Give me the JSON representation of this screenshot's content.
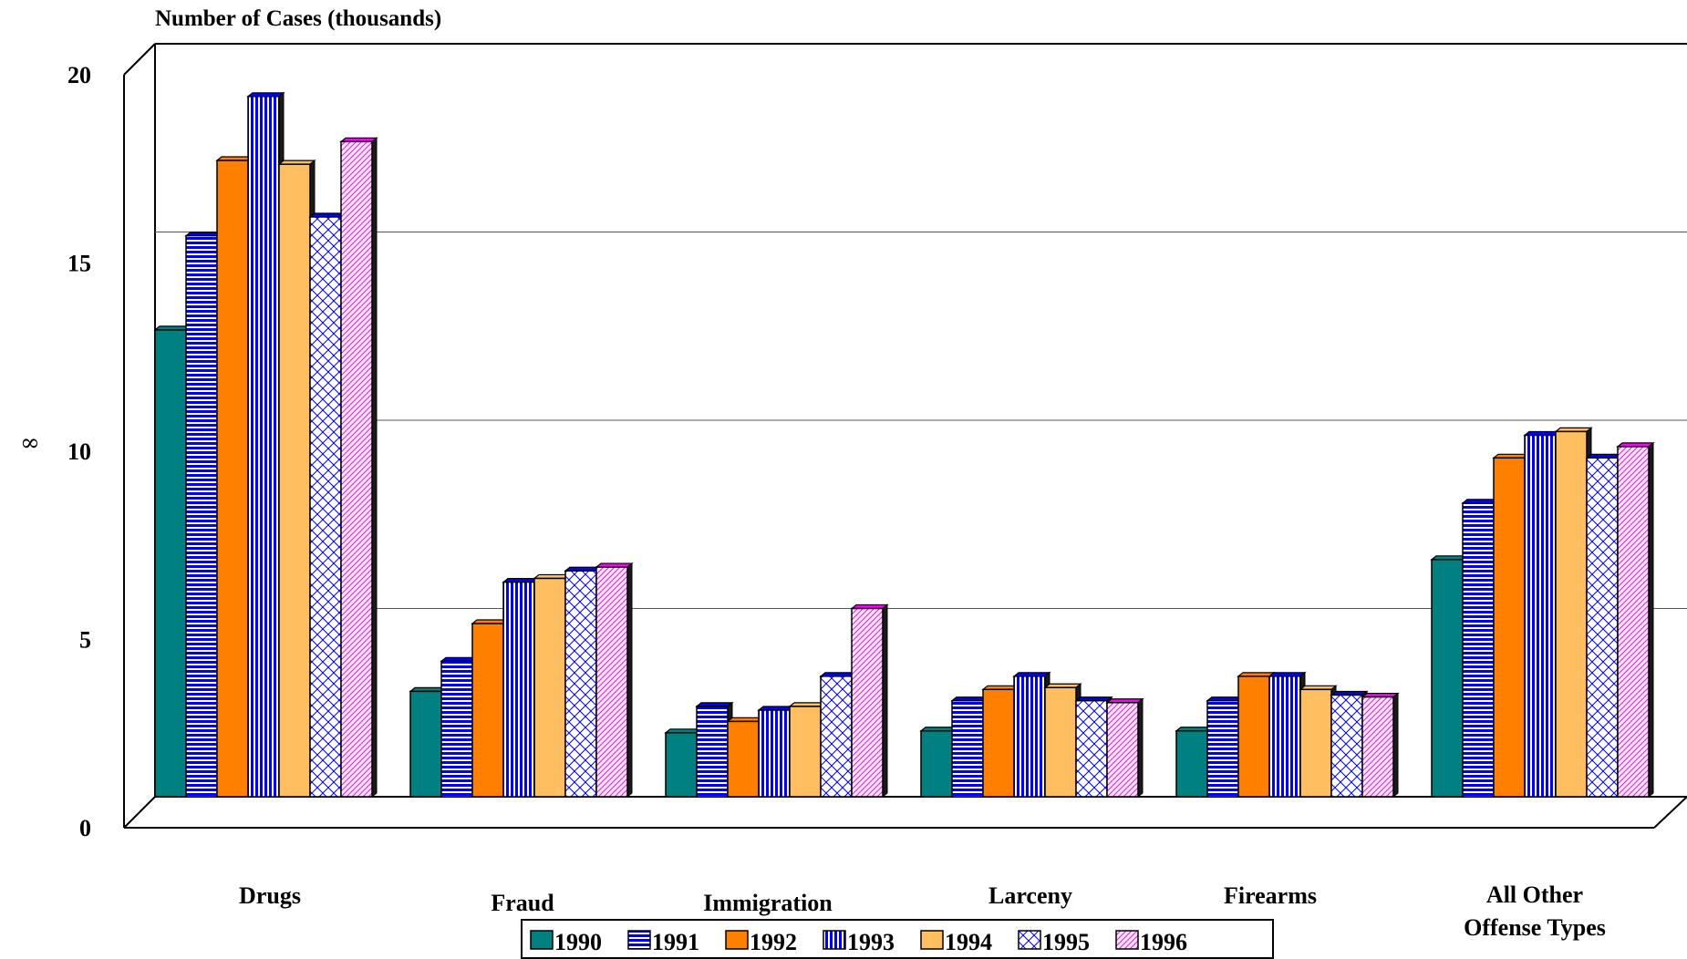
{
  "chart_data": {
    "type": "bar",
    "title": "Number of Cases (thousands)",
    "side_glyph": "∞",
    "categories": [
      [
        "Drugs"
      ],
      [
        "Fraud"
      ],
      [
        "Immigration"
      ],
      [
        "Larceny"
      ],
      [
        "Firearms"
      ],
      [
        "All Other",
        "Offense Types"
      ]
    ],
    "ylim": [
      0,
      20
    ],
    "yticks": [
      "0",
      "5",
      "10",
      "15",
      "20"
    ],
    "grid": true,
    "legend_position": "bottom-center",
    "series": [
      {
        "name": "1990",
        "color": "#008080",
        "pattern": "solid",
        "values": [
          12.4,
          2.8,
          1.7,
          1.75,
          1.75,
          6.3
        ]
      },
      {
        "name": "1991",
        "color": "#0000ff",
        "pattern": "horizontal-lines",
        "values": [
          14.9,
          3.6,
          2.4,
          2.55,
          2.55,
          7.8
        ]
      },
      {
        "name": "1992",
        "color": "#ff8000",
        "pattern": "solid",
        "values": [
          16.9,
          4.6,
          2.0,
          2.85,
          3.2,
          9.0
        ]
      },
      {
        "name": "1993",
        "color": "#0000ff",
        "pattern": "vertical-lines",
        "values": [
          18.6,
          5.7,
          2.3,
          3.2,
          3.2,
          9.6
        ]
      },
      {
        "name": "1994",
        "color": "#ffbf60",
        "pattern": "solid",
        "values": [
          16.8,
          5.8,
          2.4,
          2.9,
          2.85,
          9.7
        ]
      },
      {
        "name": "1995",
        "color": "#0000ff",
        "pattern": "crosshatch",
        "values": [
          15.4,
          6.0,
          3.2,
          2.55,
          2.7,
          9.0
        ]
      },
      {
        "name": "1996",
        "color": "#ff00ff",
        "pattern": "diagonal",
        "values": [
          17.4,
          6.1,
          5.0,
          2.5,
          2.65,
          9.3
        ]
      }
    ]
  }
}
